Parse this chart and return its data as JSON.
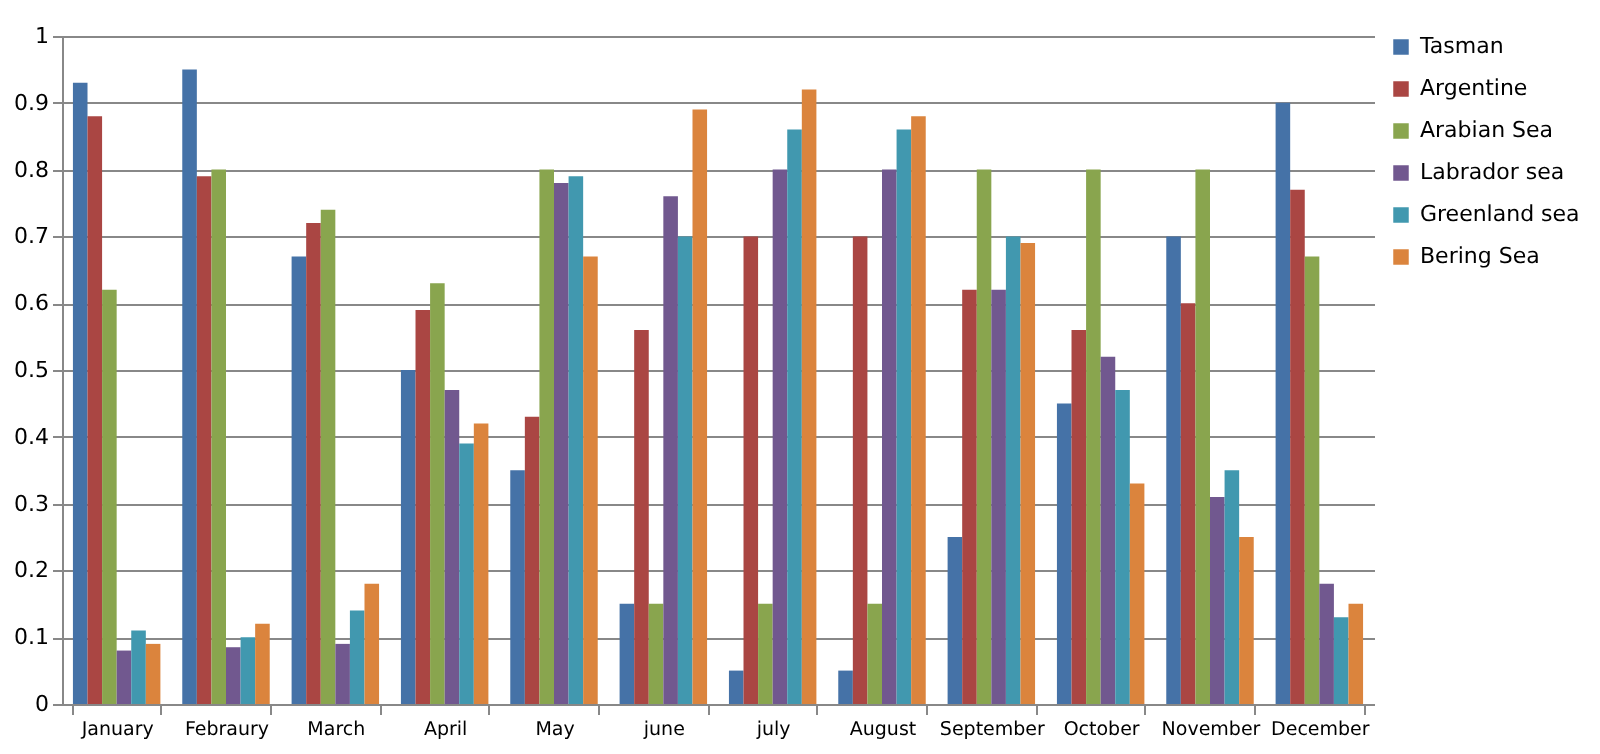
{
  "chart_data": {
    "type": "bar",
    "categories": [
      "January",
      "Febraury",
      "March",
      "April",
      "May",
      "june",
      "july",
      "August",
      "September",
      "October",
      "November",
      "December"
    ],
    "series": [
      {
        "name": "Tasman",
        "color": "#4572a7",
        "values": [
          0.93,
          0.95,
          0.67,
          0.5,
          0.35,
          0.15,
          0.05,
          0.05,
          0.25,
          0.45,
          0.7,
          0.9
        ]
      },
      {
        "name": "Argentine",
        "color": "#aa4643",
        "values": [
          0.88,
          0.79,
          0.72,
          0.59,
          0.43,
          0.56,
          0.7,
          0.7,
          0.62,
          0.56,
          0.6,
          0.77
        ]
      },
      {
        "name": "Arabian Sea",
        "color": "#89a54e",
        "values": [
          0.62,
          0.8,
          0.74,
          0.63,
          0.8,
          0.15,
          0.15,
          0.15,
          0.8,
          0.8,
          0.8,
          0.67
        ]
      },
      {
        "name": "Labrador sea",
        "color": "#71588f",
        "values": [
          0.08,
          0.085,
          0.09,
          0.47,
          0.78,
          0.76,
          0.8,
          0.8,
          0.62,
          0.52,
          0.31,
          0.18
        ]
      },
      {
        "name": "Greenland sea",
        "color": "#4198af",
        "values": [
          0.11,
          0.1,
          0.14,
          0.39,
          0.79,
          0.7,
          0.86,
          0.86,
          0.7,
          0.47,
          0.35,
          0.13
        ]
      },
      {
        "name": "Bering Sea",
        "color": "#db843d",
        "values": [
          0.09,
          0.12,
          0.18,
          0.42,
          0.67,
          0.89,
          0.92,
          0.88,
          0.69,
          0.33,
          0.25,
          0.15
        ]
      }
    ],
    "ylim": [
      0,
      1
    ],
    "yticks": [
      0,
      0.1,
      0.2,
      0.3,
      0.4,
      0.5,
      0.6,
      0.7,
      0.8,
      0.9,
      1
    ],
    "grid": "y",
    "legend": "right"
  }
}
